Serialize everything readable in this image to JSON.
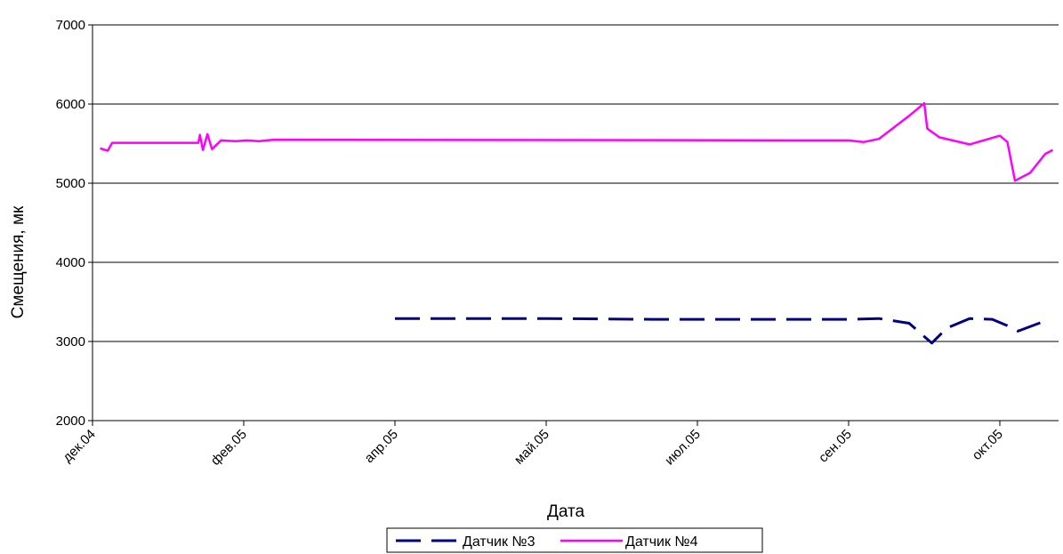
{
  "chart_data": {
    "type": "line",
    "xlabel": "Дата",
    "ylabel": "Смещения, мк",
    "ylim": [
      2000,
      7000
    ],
    "yticks": [
      "2000",
      "3000",
      "4000",
      "5000",
      "6000",
      "7000"
    ],
    "x_tick_labels": [
      "дек.04",
      "фев.05",
      "апр.05",
      "май.05",
      "июл.05",
      "сен.05",
      "окт.05"
    ],
    "grid": "horizontal",
    "legend_placement": "bottom",
    "series": [
      {
        "name": "Датчик №3",
        "color": "#000080",
        "dash": "dashed",
        "points": [
          [
            2.0,
            3290
          ],
          [
            3.0,
            3290
          ],
          [
            3.7,
            3280
          ],
          [
            4.5,
            3280
          ],
          [
            5.0,
            3280
          ],
          [
            5.2,
            3290
          ],
          [
            5.4,
            3230
          ],
          [
            5.55,
            2980
          ],
          [
            5.65,
            3170
          ],
          [
            5.8,
            3290
          ],
          [
            5.95,
            3280
          ],
          [
            6.05,
            3200
          ],
          [
            6.12,
            3130
          ],
          [
            6.3,
            3260
          ]
        ]
      },
      {
        "name": "Датчик №4",
        "color": "#FF00FF",
        "dash": "solid",
        "points": [
          [
            0.05,
            5440
          ],
          [
            0.1,
            5410
          ],
          [
            0.13,
            5510
          ],
          [
            0.7,
            5510
          ],
          [
            0.71,
            5610
          ],
          [
            0.73,
            5420
          ],
          [
            0.76,
            5620
          ],
          [
            0.79,
            5430
          ],
          [
            0.85,
            5540
          ],
          [
            0.95,
            5530
          ],
          [
            1.02,
            5540
          ],
          [
            1.1,
            5530
          ],
          [
            1.2,
            5550
          ],
          [
            5.0,
            5540
          ],
          [
            5.1,
            5520
          ],
          [
            5.2,
            5560
          ],
          [
            5.4,
            5850
          ],
          [
            5.5,
            6010
          ],
          [
            5.52,
            5690
          ],
          [
            5.6,
            5580
          ],
          [
            5.8,
            5490
          ],
          [
            6.0,
            5600
          ],
          [
            6.05,
            5520
          ],
          [
            6.1,
            5030
          ],
          [
            6.2,
            5130
          ],
          [
            6.3,
            5370
          ],
          [
            6.35,
            5420
          ]
        ]
      }
    ]
  }
}
